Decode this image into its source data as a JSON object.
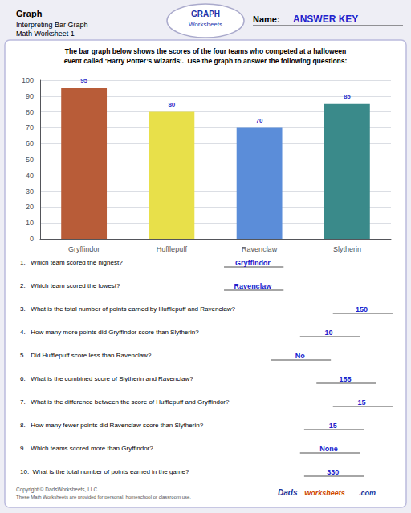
{
  "chart_data": {
    "type": "bar",
    "title": "Graph",
    "subtitle": "Interpreting Bar Graph",
    "annotations": [
      "Math Worksheet 1",
      "Name:",
      "ANSWER KEY",
      "GRAPH",
      "Worksheets",
      "The bar graph below shows the scores of the four teams who competed at a halloween\nevent called ‘Harry Potter’s Wizards’.  Use the graph to answer the following questions:",
      "1.   Which team scored the highest?",
      "Gryffindor",
      "2.   Which team scored the lowest?",
      "Ravenclaw",
      "3.   What is the total number of points earned by Hufflepuff and Ravenclaw?",
      "150",
      "4.   How many more points did Gryffindor score than Slytherin?",
      "10",
      "5.   Did Hufflepuff score less than Ravenclaw?",
      "No",
      "6.   What is the combined score of Slytherin and Ravenclaw?",
      "155",
      "7.   What is the difference between the score of Hufflepuff and Gryffindor?",
      "15",
      "8.   How many fewer points did Ravenclaw score than Slytherin?",
      "15",
      "9.   Which teams scored more than Gryffindor?",
      "None",
      "10.  What is the total number of points earned in the game?",
      "330",
      "Copyright © DadsWorksheets, LLC",
      "These Math Worksheets are provided for personal, homeschool or classroom use.",
      "Dads",
      "Worksheets",
      ".com"
    ],
    "categories": [
      "Gryffindor",
      "Hufflepuff",
      "Ravenclaw",
      "Slytherin"
    ],
    "values": [
      95,
      80,
      70,
      85
    ],
    "colors": [
      "#b85c38",
      "#e8e04a",
      "#5b8dd9",
      "#3a8a8a"
    ],
    "ylim": [
      0,
      100
    ],
    "yticks": [
      0,
      10,
      20,
      30,
      40,
      50,
      60,
      70,
      80,
      90,
      100
    ],
    "grid": true,
    "data_labels": true
  }
}
